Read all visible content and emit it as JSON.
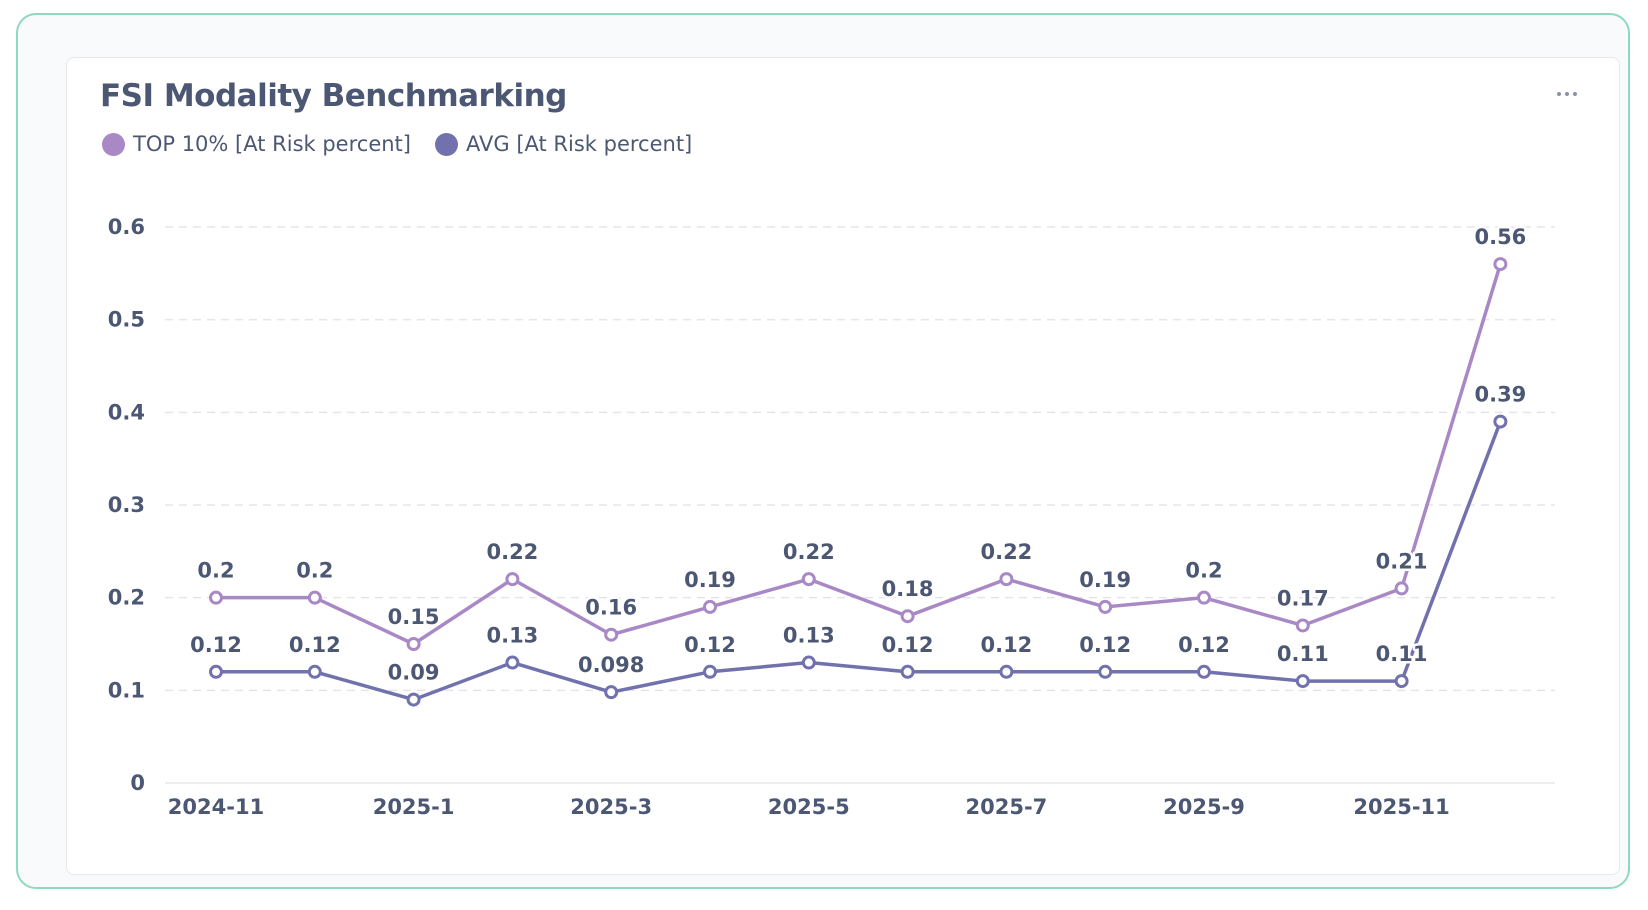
{
  "card": {
    "title": "FSI Modality Benchmarking",
    "menu_icon": "ellipsis-icon"
  },
  "legend": {
    "items": [
      {
        "label": "TOP 10% [At Risk percent]",
        "color": "#a989c5"
      },
      {
        "label": "AVG [At Risk percent]",
        "color": "#7172ad"
      }
    ]
  },
  "chart_data": {
    "type": "line",
    "title": "FSI Modality Benchmarking",
    "xlabel": "",
    "ylabel": "",
    "ylim": [
      0,
      0.6
    ],
    "yticks": [
      "0",
      "0.1",
      "0.2",
      "0.3",
      "0.4",
      "0.5",
      "0.6"
    ],
    "grid": true,
    "legend_position": "top-left",
    "x": [
      "2024-11",
      "2024-12",
      "2025-1",
      "2025-2",
      "2025-3",
      "2025-4",
      "2025-5",
      "2025-6",
      "2025-7",
      "2025-8",
      "2025-9",
      "2025-10",
      "2025-11",
      "2025-12"
    ],
    "xtick_labels": [
      "2024-11",
      "2025-1",
      "2025-3",
      "2025-5",
      "2025-7",
      "2025-9",
      "2025-11"
    ],
    "series": [
      {
        "name": "TOP 10% [At Risk percent]",
        "color": "#a989c5",
        "values": [
          0.2,
          0.2,
          0.15,
          0.22,
          0.16,
          0.19,
          0.22,
          0.18,
          0.22,
          0.19,
          0.2,
          0.17,
          0.21,
          0.56
        ],
        "labels": [
          "0.2",
          "0.2",
          "0.15",
          "0.22",
          "0.16",
          "0.19",
          "0.22",
          "0.18",
          "0.22",
          "0.19",
          "0.2",
          "0.17",
          "0.21",
          "0.56"
        ]
      },
      {
        "name": "AVG [At Risk percent]",
        "color": "#7172ad",
        "values": [
          0.12,
          0.12,
          0.09,
          0.13,
          0.098,
          0.12,
          0.13,
          0.12,
          0.12,
          0.12,
          0.12,
          0.11,
          0.11,
          0.39
        ],
        "labels": [
          "0.12",
          "0.12",
          "0.09",
          "0.13",
          "0.098",
          "0.12",
          "0.13",
          "0.12",
          "0.12",
          "0.12",
          "0.12",
          "0.11",
          "0.11",
          "0.39"
        ]
      }
    ]
  }
}
